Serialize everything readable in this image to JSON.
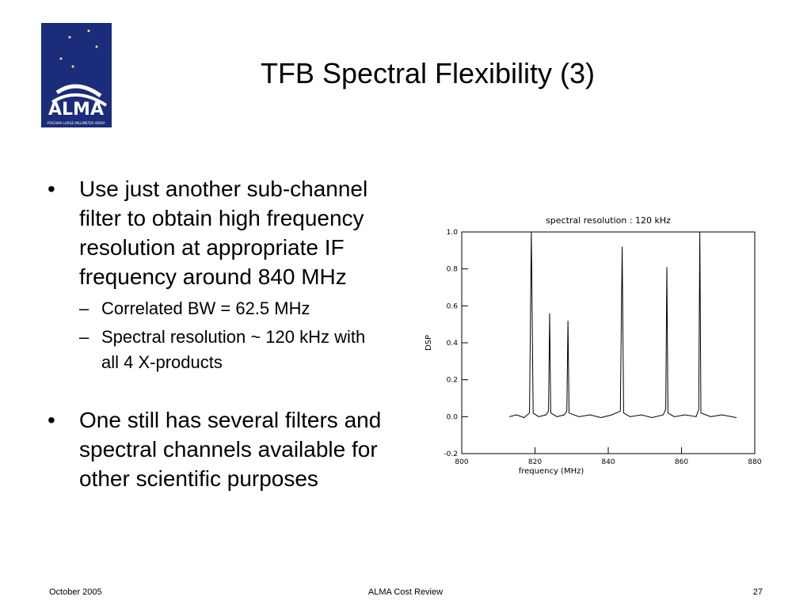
{
  "slide": {
    "title": "TFB Spectral Flexibility (3)",
    "logo": {
      "name": "ALMA",
      "subtitle": "ATACAMA LARGE MILLIMETER ARRAY"
    },
    "bullets": [
      {
        "text": "Use just another sub-channel filter to obtain high frequency resolution at appropriate IF frequency around 840 MHz",
        "sub": [
          "Correlated BW = 62.5 MHz",
          "Spectral resolution ~ 120 kHz with all 4 X-products"
        ]
      },
      {
        "text": "One still has several filters and spectral channels available for other scientific purposes",
        "sub": []
      }
    ],
    "footer": {
      "left": "October 2005",
      "center": "ALMA Cost Review",
      "right": "27"
    }
  },
  "chart_data": {
    "type": "line",
    "title": "spectral resolution : 120 kHz",
    "x_label": "frequency (MHz)",
    "y_label": "DSP",
    "x": [
      813,
      815,
      817,
      818.5,
      819,
      819.5,
      821,
      823,
      823.7,
      824,
      824.3,
      826,
      828,
      828.7,
      829,
      829.3,
      832,
      835,
      838,
      841,
      843.3,
      843.8,
      844.2,
      846,
      849,
      852,
      855,
      855.7,
      856,
      856.3,
      858,
      861,
      864,
      864.7,
      865,
      865.3,
      868,
      871,
      875
    ],
    "series": [
      {
        "color": "#000000",
        "values": [
          0.0,
          0.01,
          -0.005,
          0.02,
          1.0,
          0.02,
          0.0,
          0.01,
          0.03,
          0.56,
          0.02,
          0.0,
          0.01,
          0.03,
          0.52,
          0.02,
          0.0,
          0.01,
          -0.005,
          0.01,
          0.03,
          0.92,
          0.02,
          0.0,
          0.01,
          -0.005,
          0.01,
          0.04,
          0.81,
          0.02,
          0.0,
          0.01,
          0.0,
          0.04,
          1.0,
          0.02,
          0.0,
          0.01,
          -0.005
        ]
      }
    ],
    "xlim": [
      800,
      880
    ],
    "xticks": [
      800,
      820,
      840,
      860,
      880
    ],
    "ylim": [
      -0.2,
      1.0
    ],
    "yticks": [
      -0.2,
      {
        "value": 0,
        "label": "0.0"
      },
      0.2,
      0.4,
      0.6,
      0.8,
      {
        "value": 1,
        "label": "1.0"
      }
    ]
  }
}
